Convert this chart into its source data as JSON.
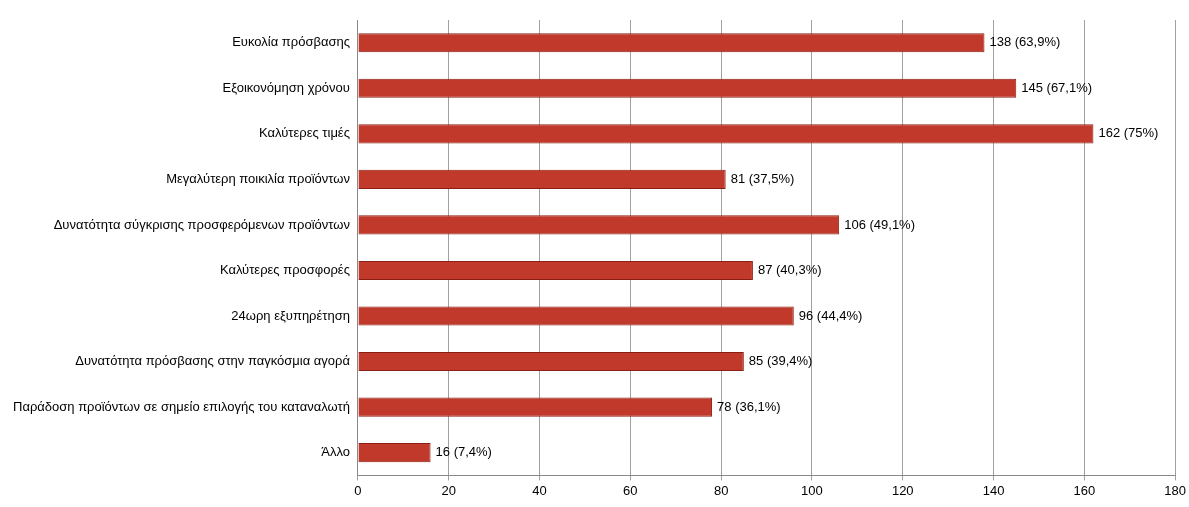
{
  "chart_data": {
    "type": "bar",
    "orientation": "horizontal",
    "categories": [
      "Ευκολία πρόσβασης",
      "Εξοικονόμηση χρόνου",
      "Καλύτερες τιμές",
      "Μεγαλύτερη ποικιλία προϊόντων",
      "Δυνατότητα σύγκρισης προσφερόμενων προϊόντων",
      "Καλύτερες προσφορές",
      "24ωρη εξυπηρέτηση",
      "Δυνατότητα πρόσβασης στην παγκόσμια αγορά",
      "Παράδοση προϊόντων σε σημείο επιλογής του καταναλωτή",
      "Άλλο"
    ],
    "values": [
      138,
      145,
      162,
      81,
      106,
      87,
      96,
      85,
      78,
      16
    ],
    "value_labels": [
      "138 (63,9%)",
      "145 (67,1%)",
      "162 (75%)",
      "81 (37,5%)",
      "106 (49,1%)",
      "87 (40,3%)",
      "96 (44,4%)",
      "85 (39,4%)",
      "78 (36,1%)",
      "16 (7,4%)"
    ],
    "color": "#c0392b",
    "xlim": [
      0,
      180
    ],
    "xticks": [
      0,
      20,
      40,
      60,
      80,
      100,
      120,
      140,
      160,
      180
    ],
    "grid": "x",
    "legend": false
  }
}
